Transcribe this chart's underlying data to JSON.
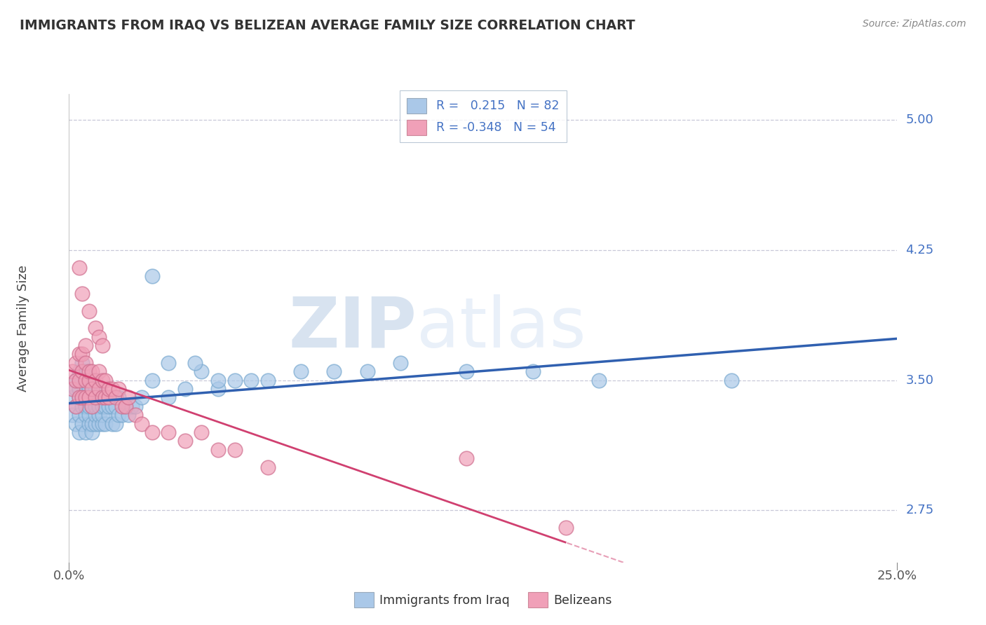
{
  "title": "IMMIGRANTS FROM IRAQ VS BELIZEAN AVERAGE FAMILY SIZE CORRELATION CHART",
  "source": "Source: ZipAtlas.com",
  "ylabel": "Average Family Size",
  "xlim": [
    0.0,
    0.25
  ],
  "ylim": [
    2.45,
    5.15
  ],
  "yticks": [
    2.75,
    3.5,
    4.25,
    5.0
  ],
  "xticks": [
    0.0,
    0.25
  ],
  "xticklabels": [
    "0.0%",
    "25.0%"
  ],
  "watermark_zip": "ZIP",
  "watermark_atlas": "atlas",
  "series1_color": "#aac8e8",
  "series1_edge": "#7aaad0",
  "series2_color": "#f0a0b8",
  "series2_edge": "#d07090",
  "line1_color": "#3060b0",
  "line2_color": "#d04070",
  "grid_color": "#c8c8d8",
  "background": "#ffffff",
  "legend1_color": "#aac8e8",
  "legend2_color": "#f0a0b8",
  "legend_text_color": "#4472c4",
  "R1": 0.215,
  "N1": 82,
  "R2": -0.348,
  "N2": 54,
  "series1_x": [
    0.001,
    0.001,
    0.002,
    0.002,
    0.002,
    0.002,
    0.003,
    0.003,
    0.003,
    0.003,
    0.003,
    0.004,
    0.004,
    0.004,
    0.004,
    0.004,
    0.005,
    0.005,
    0.005,
    0.005,
    0.005,
    0.005,
    0.006,
    0.006,
    0.006,
    0.006,
    0.006,
    0.007,
    0.007,
    0.007,
    0.007,
    0.007,
    0.008,
    0.008,
    0.008,
    0.008,
    0.008,
    0.009,
    0.009,
    0.009,
    0.009,
    0.01,
    0.01,
    0.01,
    0.01,
    0.011,
    0.011,
    0.012,
    0.012,
    0.012,
    0.013,
    0.013,
    0.014,
    0.014,
    0.015,
    0.015,
    0.016,
    0.017,
    0.018,
    0.019,
    0.02,
    0.022,
    0.025,
    0.03,
    0.035,
    0.04,
    0.045,
    0.05,
    0.06,
    0.07,
    0.08,
    0.09,
    0.1,
    0.12,
    0.14,
    0.16,
    0.025,
    0.03,
    0.038,
    0.045,
    0.055,
    0.2
  ],
  "series1_y": [
    3.3,
    3.4,
    3.25,
    3.35,
    3.45,
    3.5,
    3.2,
    3.3,
    3.4,
    3.45,
    3.55,
    3.25,
    3.35,
    3.4,
    3.5,
    3.6,
    3.2,
    3.3,
    3.35,
    3.4,
    3.5,
    3.55,
    3.25,
    3.3,
    3.35,
    3.4,
    3.45,
    3.2,
    3.25,
    3.35,
    3.4,
    3.5,
    3.25,
    3.3,
    3.35,
    3.4,
    3.45,
    3.25,
    3.3,
    3.35,
    3.45,
    3.25,
    3.3,
    3.35,
    3.4,
    3.25,
    3.35,
    3.3,
    3.35,
    3.4,
    3.25,
    3.35,
    3.25,
    3.35,
    3.3,
    3.4,
    3.3,
    3.35,
    3.3,
    3.35,
    3.35,
    3.4,
    3.5,
    3.4,
    3.45,
    3.55,
    3.45,
    3.5,
    3.5,
    3.55,
    3.55,
    3.55,
    3.6,
    3.55,
    3.55,
    3.5,
    4.1,
    3.6,
    3.6,
    3.5,
    3.5,
    3.5
  ],
  "series2_x": [
    0.001,
    0.001,
    0.002,
    0.002,
    0.002,
    0.003,
    0.003,
    0.003,
    0.004,
    0.004,
    0.004,
    0.005,
    0.005,
    0.005,
    0.005,
    0.006,
    0.006,
    0.006,
    0.007,
    0.007,
    0.007,
    0.008,
    0.008,
    0.009,
    0.009,
    0.01,
    0.01,
    0.011,
    0.011,
    0.012,
    0.012,
    0.013,
    0.014,
    0.015,
    0.016,
    0.017,
    0.018,
    0.02,
    0.022,
    0.025,
    0.03,
    0.035,
    0.04,
    0.045,
    0.05,
    0.06,
    0.003,
    0.004,
    0.006,
    0.008,
    0.009,
    0.01,
    0.12,
    0.15
  ],
  "series2_y": [
    3.45,
    3.55,
    3.35,
    3.5,
    3.6,
    3.4,
    3.5,
    3.65,
    3.4,
    3.55,
    3.65,
    3.4,
    3.5,
    3.6,
    3.7,
    3.4,
    3.5,
    3.55,
    3.35,
    3.45,
    3.55,
    3.4,
    3.5,
    3.45,
    3.55,
    3.4,
    3.5,
    3.4,
    3.5,
    3.4,
    3.45,
    3.45,
    3.4,
    3.45,
    3.35,
    3.35,
    3.4,
    3.3,
    3.25,
    3.2,
    3.2,
    3.15,
    3.2,
    3.1,
    3.1,
    3.0,
    4.15,
    4.0,
    3.9,
    3.8,
    3.75,
    3.7,
    3.05,
    2.65
  ]
}
